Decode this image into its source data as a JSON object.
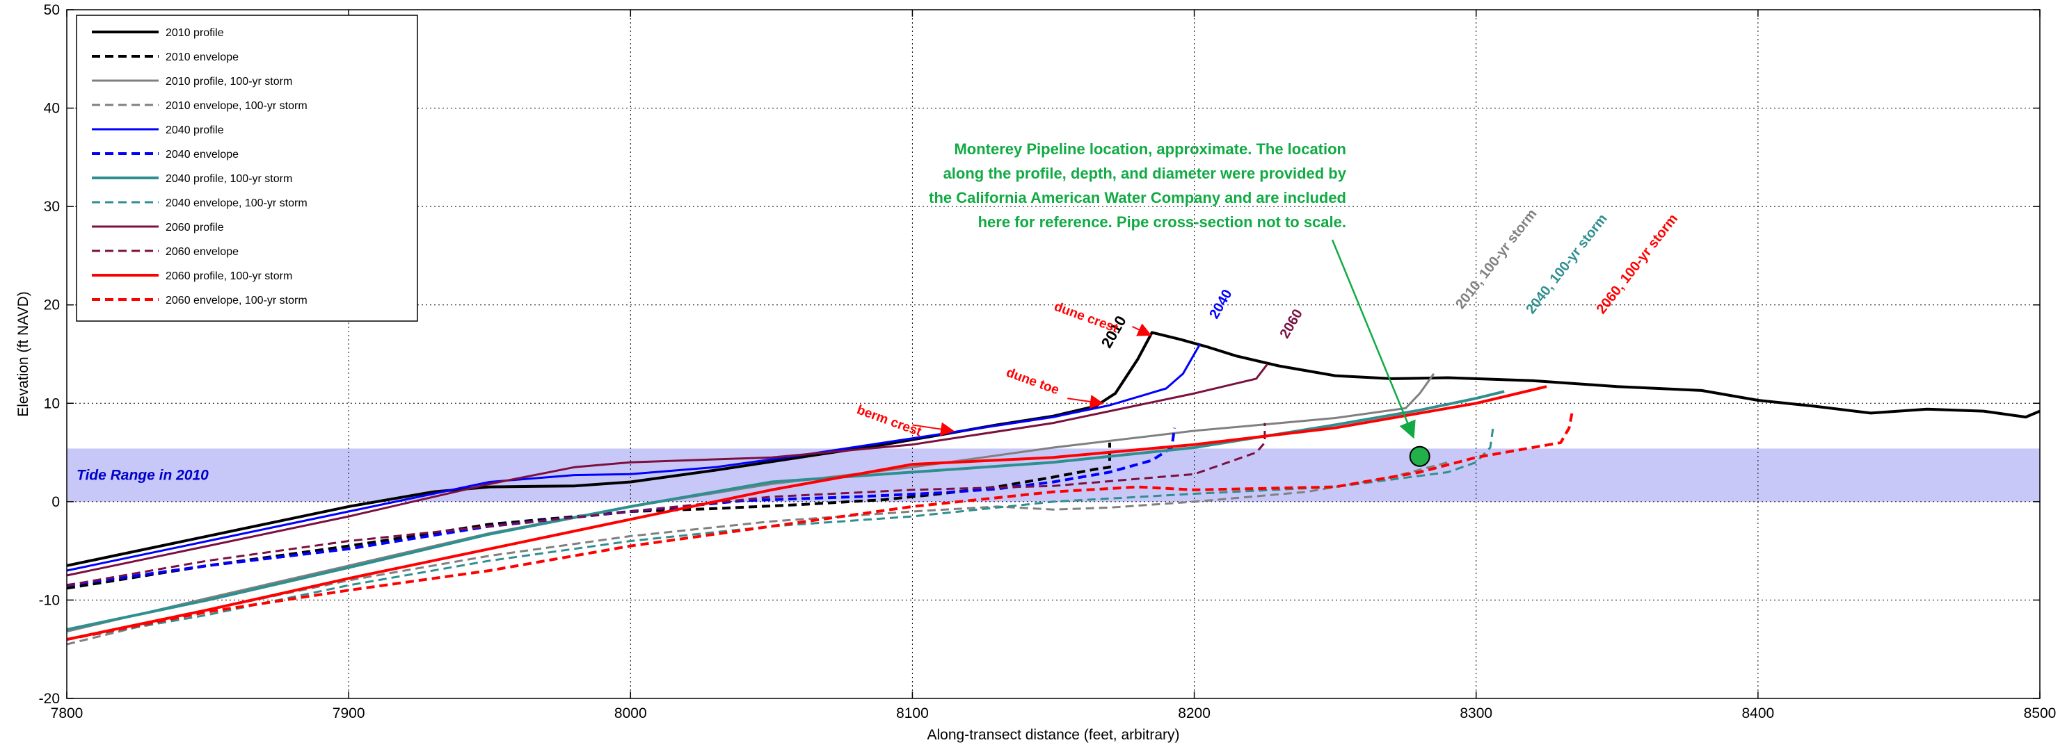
{
  "chart_data": {
    "type": "line",
    "title": "",
    "xlabel": "Along-transect distance (feet, arbitrary)",
    "ylabel": "Elevation (ft NAVD)",
    "xlim": [
      7800,
      8500
    ],
    "ylim": [
      -20,
      50
    ],
    "xticks": [
      7800,
      7900,
      8000,
      8100,
      8200,
      8300,
      8400,
      8500
    ],
    "yticks": [
      -20,
      -10,
      0,
      10,
      20,
      30,
      40,
      50
    ],
    "grid": true,
    "legend_position": "top-left",
    "tide_band": {
      "label": "Tide Range in 2010",
      "y0": 0,
      "y1": 5.4,
      "color": "#c8c8f8"
    },
    "series": [
      {
        "name": "2010 profile",
        "color": "#000000",
        "dash": "solid",
        "width": 4,
        "x": [
          7800,
          7850,
          7900,
          7930,
          7950,
          7980,
          8000,
          8030,
          8060,
          8090,
          8110,
          8130,
          8150,
          8165,
          8172,
          8180,
          8185,
          8195,
          8205,
          8215,
          8230,
          8250,
          8270,
          8290,
          8320,
          8350,
          8380,
          8400,
          8420,
          8440,
          8460,
          8480,
          8495,
          8500
        ],
        "y": [
          -6.5,
          -3.5,
          -0.5,
          1,
          1.5,
          1.6,
          2,
          3.2,
          4.5,
          5.8,
          6.8,
          7.8,
          8.7,
          9.7,
          11,
          14.5,
          17.2,
          16.5,
          15.7,
          14.8,
          13.8,
          12.8,
          12.5,
          12.6,
          12.3,
          11.7,
          11.3,
          10.3,
          9.7,
          9,
          9.4,
          9.2,
          8.6,
          9.2
        ]
      },
      {
        "name": "2010 envelope",
        "color": "#000000",
        "dash": "12,7",
        "width": 4,
        "x": [
          7800,
          7850,
          7900,
          7950,
          8000,
          8030,
          8060,
          8090,
          8110,
          8130,
          8150,
          8165,
          8170,
          8170
        ],
        "y": [
          -8.8,
          -6.5,
          -4.5,
          -2.3,
          -1,
          -0.7,
          -0.3,
          0.2,
          0.8,
          1.5,
          2.5,
          3.3,
          3.5,
          6
        ]
      },
      {
        "name": "2010 profile, 100-yr storm",
        "color": "#808080",
        "dash": "solid",
        "width": 3,
        "x": [
          7800,
          7850,
          7900,
          7950,
          8000,
          8050,
          8100,
          8150,
          8200,
          8250,
          8275,
          8280,
          8285
        ],
        "y": [
          -13.2,
          -9.8,
          -6.5,
          -3.2,
          -0.5,
          1.8,
          3.5,
          5.5,
          7.2,
          8.5,
          9.5,
          11,
          13
        ]
      },
      {
        "name": "2010 envelope, 100-yr storm",
        "color": "#808080",
        "dash": "12,7",
        "width": 3,
        "x": [
          7800,
          7850,
          7900,
          7950,
          8000,
          8050,
          8100,
          8130,
          8150,
          8170,
          8200,
          8240,
          8270,
          8290
        ],
        "y": [
          -14.5,
          -11,
          -8,
          -5.5,
          -3.5,
          -2,
          -1,
          -0.5,
          -0.8,
          -0.6,
          0,
          1,
          2.5,
          4
        ]
      },
      {
        "name": "2040 profile",
        "color": "#0000ff",
        "dash": "solid",
        "width": 3,
        "x": [
          7800,
          7850,
          7900,
          7930,
          7950,
          7980,
          8000,
          8030,
          8060,
          8090,
          8120,
          8150,
          8170,
          8190,
          8196,
          8202
        ],
        "y": [
          -7,
          -4,
          -1,
          0.8,
          2,
          2.7,
          2.8,
          3.5,
          4.7,
          6,
          7.3,
          8.6,
          9.8,
          11.5,
          13,
          16
        ]
      },
      {
        "name": "2040 envelope",
        "color": "#0000ff",
        "dash": "12,7",
        "width": 4,
        "x": [
          7800,
          7850,
          7900,
          7950,
          8000,
          8040,
          8080,
          8110,
          8130,
          8150,
          8170,
          8185,
          8192,
          8193
        ],
        "y": [
          -8.5,
          -6.5,
          -4.8,
          -2.5,
          -1,
          0.1,
          0.5,
          0.9,
          1.3,
          2,
          3,
          4.2,
          5.5,
          7.5
        ]
      },
      {
        "name": "2040 profile, 100-yr storm",
        "color": "#2f8f8f",
        "dash": "solid",
        "width": 4,
        "x": [
          7800,
          7850,
          7900,
          7950,
          8000,
          8050,
          8100,
          8150,
          8200,
          8250,
          8280,
          8300,
          8310
        ],
        "y": [
          -13,
          -10,
          -6.7,
          -3.3,
          -0.5,
          2,
          3,
          4,
          5.5,
          7.8,
          9.3,
          10.5,
          11.2
        ]
      },
      {
        "name": "2040 envelope, 100-yr storm",
        "color": "#2f8f8f",
        "dash": "12,7",
        "width": 3,
        "x": [
          7800,
          7850,
          7900,
          7950,
          8000,
          8050,
          8100,
          8150,
          8200,
          8250,
          8290,
          8300,
          8305,
          8306
        ],
        "y": [
          -14,
          -11.5,
          -8.5,
          -6,
          -4,
          -2.5,
          -1.5,
          0,
          0.8,
          1.5,
          3,
          4,
          5.5,
          7.5
        ]
      },
      {
        "name": "2060 profile",
        "color": "#7b1040",
        "dash": "solid",
        "width": 3,
        "x": [
          7800,
          7850,
          7900,
          7950,
          7980,
          8000,
          8050,
          8100,
          8150,
          8180,
          8200,
          8222,
          8226
        ],
        "y": [
          -7.5,
          -4.5,
          -1.5,
          1.8,
          3.5,
          4,
          4.5,
          5.8,
          8,
          9.8,
          11,
          12.5,
          14
        ]
      },
      {
        "name": "2060 envelope",
        "color": "#7b1040",
        "dash": "12,7",
        "width": 3,
        "x": [
          7800,
          7850,
          7900,
          7950,
          8000,
          8050,
          8100,
          8150,
          8200,
          8222,
          8225,
          8225
        ],
        "y": [
          -8.5,
          -6,
          -4,
          -2.5,
          -1,
          0.5,
          1.2,
          1.6,
          2.8,
          5,
          6,
          8
        ]
      },
      {
        "name": "2060 profile, 100-yr storm",
        "color": "#ff0000",
        "dash": "solid",
        "width": 4,
        "x": [
          7800,
          7850,
          7900,
          7950,
          8000,
          8050,
          8100,
          8150,
          8200,
          8250,
          8300,
          8325
        ],
        "y": [
          -14,
          -11,
          -7.8,
          -4.8,
          -1.8,
          1.2,
          3.8,
          4.5,
          5.8,
          7.5,
          10,
          11.7
        ]
      },
      {
        "name": "2060 envelope, 100-yr storm",
        "color": "#ff0000",
        "dash": "12,7",
        "width": 4,
        "x": [
          7800,
          7850,
          7900,
          7950,
          8000,
          8050,
          8100,
          8150,
          8180,
          8200,
          8250,
          8280,
          8300,
          8330,
          8333,
          8334
        ],
        "y": [
          -14,
          -11.2,
          -9,
          -7,
          -4.5,
          -2.5,
          -0.5,
          1,
          1.5,
          1.2,
          1.5,
          3,
          4.5,
          6,
          7.5,
          9
        ]
      }
    ],
    "pipeline_marker": {
      "x": 8280,
      "y": 4.6,
      "color": "#22b04a"
    },
    "annotations": [
      {
        "text": "2010",
        "color": "#000000",
        "x": 8170,
        "y": 15.5,
        "rotate": -60,
        "size": 22
      },
      {
        "text": "2040",
        "color": "#0000ff",
        "x": 8208,
        "y": 18.5,
        "rotate": -60,
        "size": 20
      },
      {
        "text": "2060",
        "color": "#7b1040",
        "x": 8233,
        "y": 16.5,
        "rotate": -60,
        "size": 20
      },
      {
        "text": "2010, 100-yr storm",
        "color": "#808080",
        "x": 8295,
        "y": 19.5,
        "rotate": -52,
        "size": 20
      },
      {
        "text": "2040, 100-yr storm",
        "color": "#2f8f8f",
        "x": 8320,
        "y": 19,
        "rotate": -52,
        "size": 20
      },
      {
        "text": "2060, 100-yr storm",
        "color": "#ff0000",
        "x": 8345,
        "y": 19,
        "rotate": -52,
        "size": 20
      },
      {
        "text": "dune crest",
        "color": "#ff0000",
        "x": 8150,
        "y": 19.5,
        "rotate": 20,
        "size": 19
      },
      {
        "text": "dune toe",
        "color": "#ff0000",
        "x": 8133,
        "y": 12.8,
        "rotate": 20,
        "size": 19
      },
      {
        "text": "berm crest",
        "color": "#ff0000",
        "x": 8080,
        "y": 9,
        "rotate": 20,
        "size": 19
      }
    ],
    "arrows": [
      {
        "from": [
          8178,
          17.8
        ],
        "to": [
          8184,
          17.0
        ]
      },
      {
        "from": [
          8155,
          10.5
        ],
        "to": [
          8167,
          10.0
        ]
      },
      {
        "from": [
          8100,
          7.8
        ],
        "to": [
          8114,
          7.2
        ]
      }
    ],
    "note": {
      "color": "#11aa44",
      "lines": [
        "Monterey Pipeline location, approximate. The location",
        "along the profile, depth, and diameter were provided by",
        "the California American Water Company and are included",
        "here for reference. Pipe cross-section not to scale."
      ]
    }
  }
}
